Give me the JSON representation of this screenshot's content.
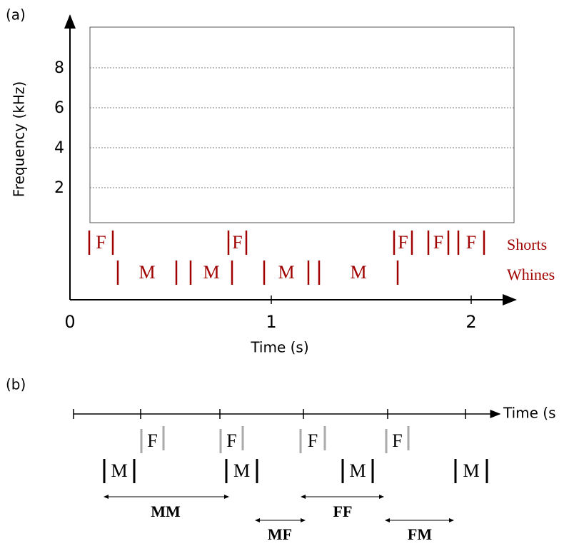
{
  "panel_a": {
    "label": "(a)",
    "y_axis_label": "Frequency (kHz)",
    "y_ticks": [
      "2",
      "4",
      "6",
      "8"
    ],
    "x_ticks": [
      "0",
      "1",
      "2"
    ],
    "x_axis_label": "Time (s)",
    "shorts": [
      "F",
      "F",
      "F",
      "F",
      "F"
    ],
    "whines": [
      "M",
      "M",
      "M",
      "M"
    ],
    "row_labels": [
      "Shorts",
      "Whines"
    ]
  },
  "panel_b": {
    "label": "(b)",
    "axis_label": "Time (s",
    "f_labels": [
      "F",
      "F",
      "F",
      "F"
    ],
    "m_labels": [
      "M",
      "M",
      "M",
      "M"
    ],
    "intervals": [
      "MM",
      "FF",
      "MF",
      "FM"
    ]
  }
}
